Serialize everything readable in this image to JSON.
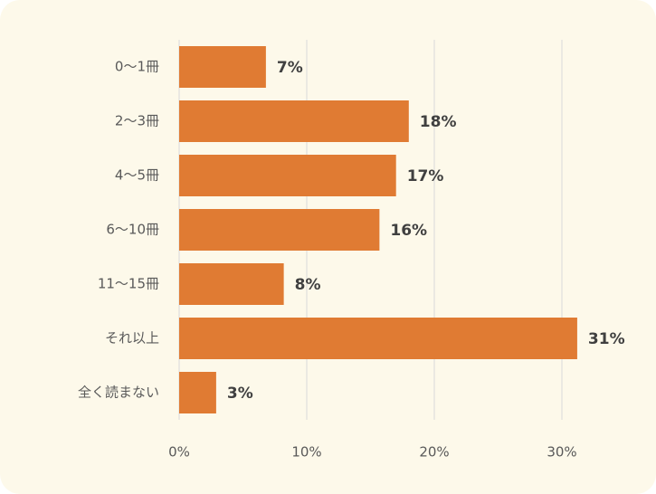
{
  "chart_data": {
    "type": "hbar",
    "categories": [
      "0〜1冊",
      "2〜3冊",
      "4〜5冊",
      "6〜10冊",
      "11〜15冊",
      "それ以上",
      "全く読まない"
    ],
    "values": [
      6.8,
      18,
      17,
      15.7,
      8.2,
      31.2,
      2.9
    ],
    "value_labels": [
      "7%",
      "18%",
      "17%",
      "16%",
      "8%",
      "31%",
      "3%"
    ],
    "color": "#e07b33",
    "xlim": [
      0,
      35
    ],
    "xticks": [
      {
        "value": 0,
        "label": "0%"
      },
      {
        "value": 10,
        "label": "10%"
      },
      {
        "value": 20,
        "label": "20%"
      },
      {
        "value": 30,
        "label": "30%"
      }
    ],
    "grid": true
  }
}
